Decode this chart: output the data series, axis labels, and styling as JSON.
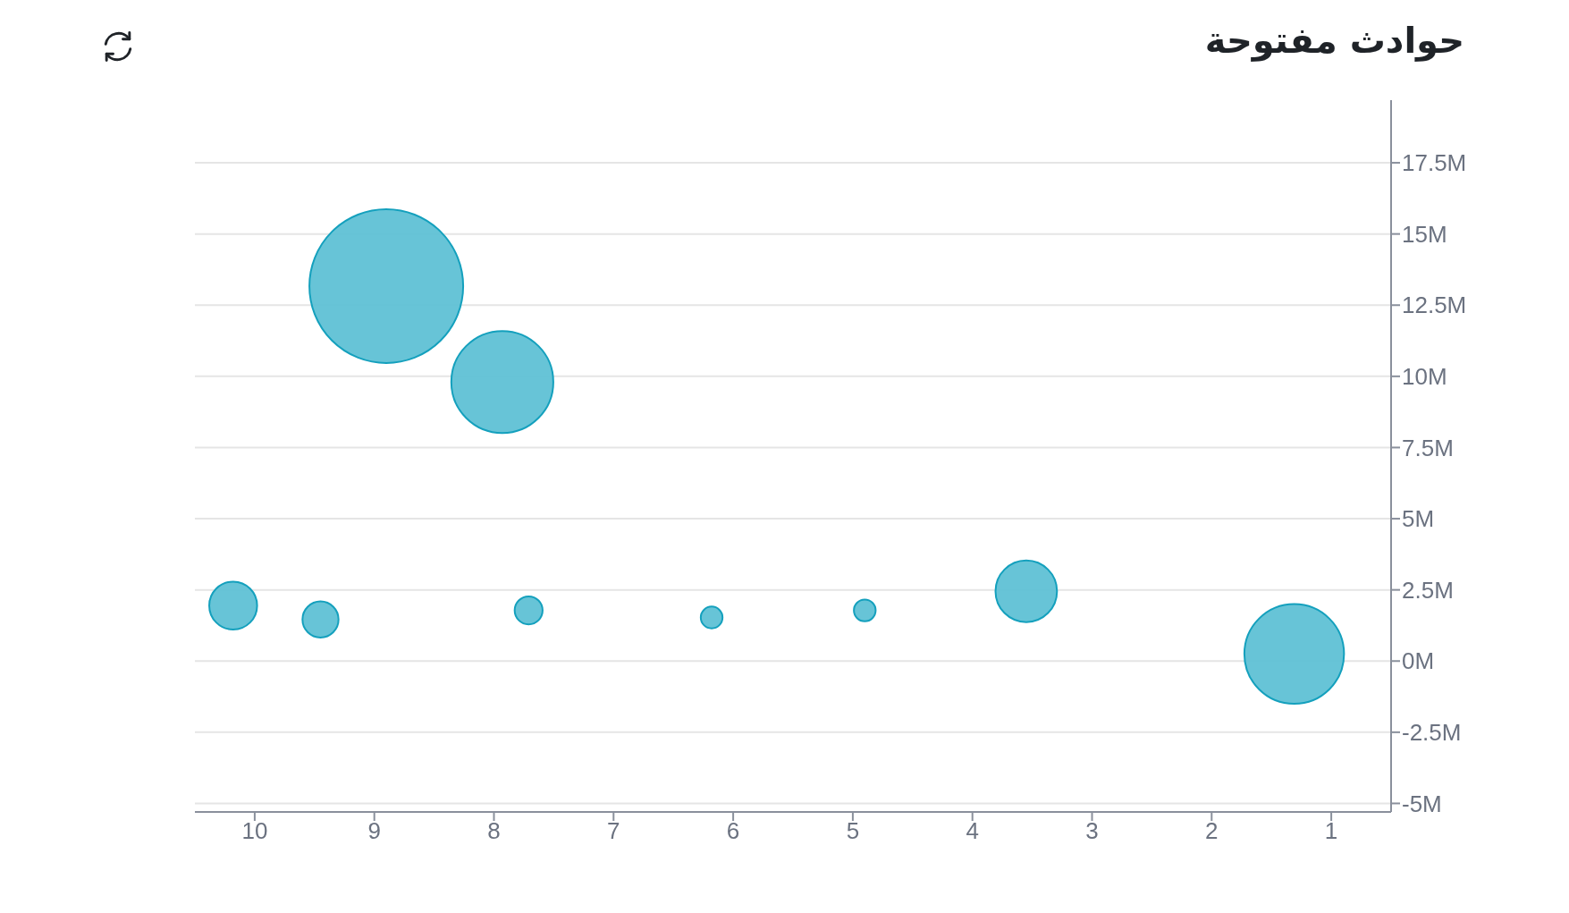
{
  "chart_data": {
    "type": "bubble",
    "title": "حوادث مفتوحة",
    "x": [
      10.18,
      9.45,
      8.9,
      7.93,
      7.71,
      6.18,
      4.9,
      3.55,
      1.31
    ],
    "values": [
      1.95,
      1.46,
      13.17,
      9.8,
      1.78,
      1.53,
      1.78,
      2.45,
      0.25
    ],
    "sizes": [
      0.097,
      0.055,
      1,
      0.44,
      0.033,
      0.02,
      0.02,
      0.16,
      0.42
    ],
    "color": "#5fc1d5",
    "xlim": [
      10.5,
      0.5
    ],
    "xticks": [
      10,
      9,
      8,
      7,
      6,
      5,
      4,
      3,
      2,
      1
    ],
    "ylim": [
      -5.3,
      19.7
    ],
    "yticks": [
      {
        "value": -5,
        "label": "-5M"
      },
      {
        "value": -2.5,
        "label": "-2.5M"
      },
      {
        "value": 0,
        "label": "0M"
      },
      {
        "value": 2.5,
        "label": "2.5M"
      },
      {
        "value": 5,
        "label": "5M"
      },
      {
        "value": 7.5,
        "label": "7.5M"
      },
      {
        "value": 10,
        "label": "10M"
      },
      {
        "value": 12.5,
        "label": "12.5M"
      },
      {
        "value": 15,
        "label": "15M"
      },
      {
        "value": 17.5,
        "label": "17.5M"
      }
    ],
    "grid": "y"
  }
}
